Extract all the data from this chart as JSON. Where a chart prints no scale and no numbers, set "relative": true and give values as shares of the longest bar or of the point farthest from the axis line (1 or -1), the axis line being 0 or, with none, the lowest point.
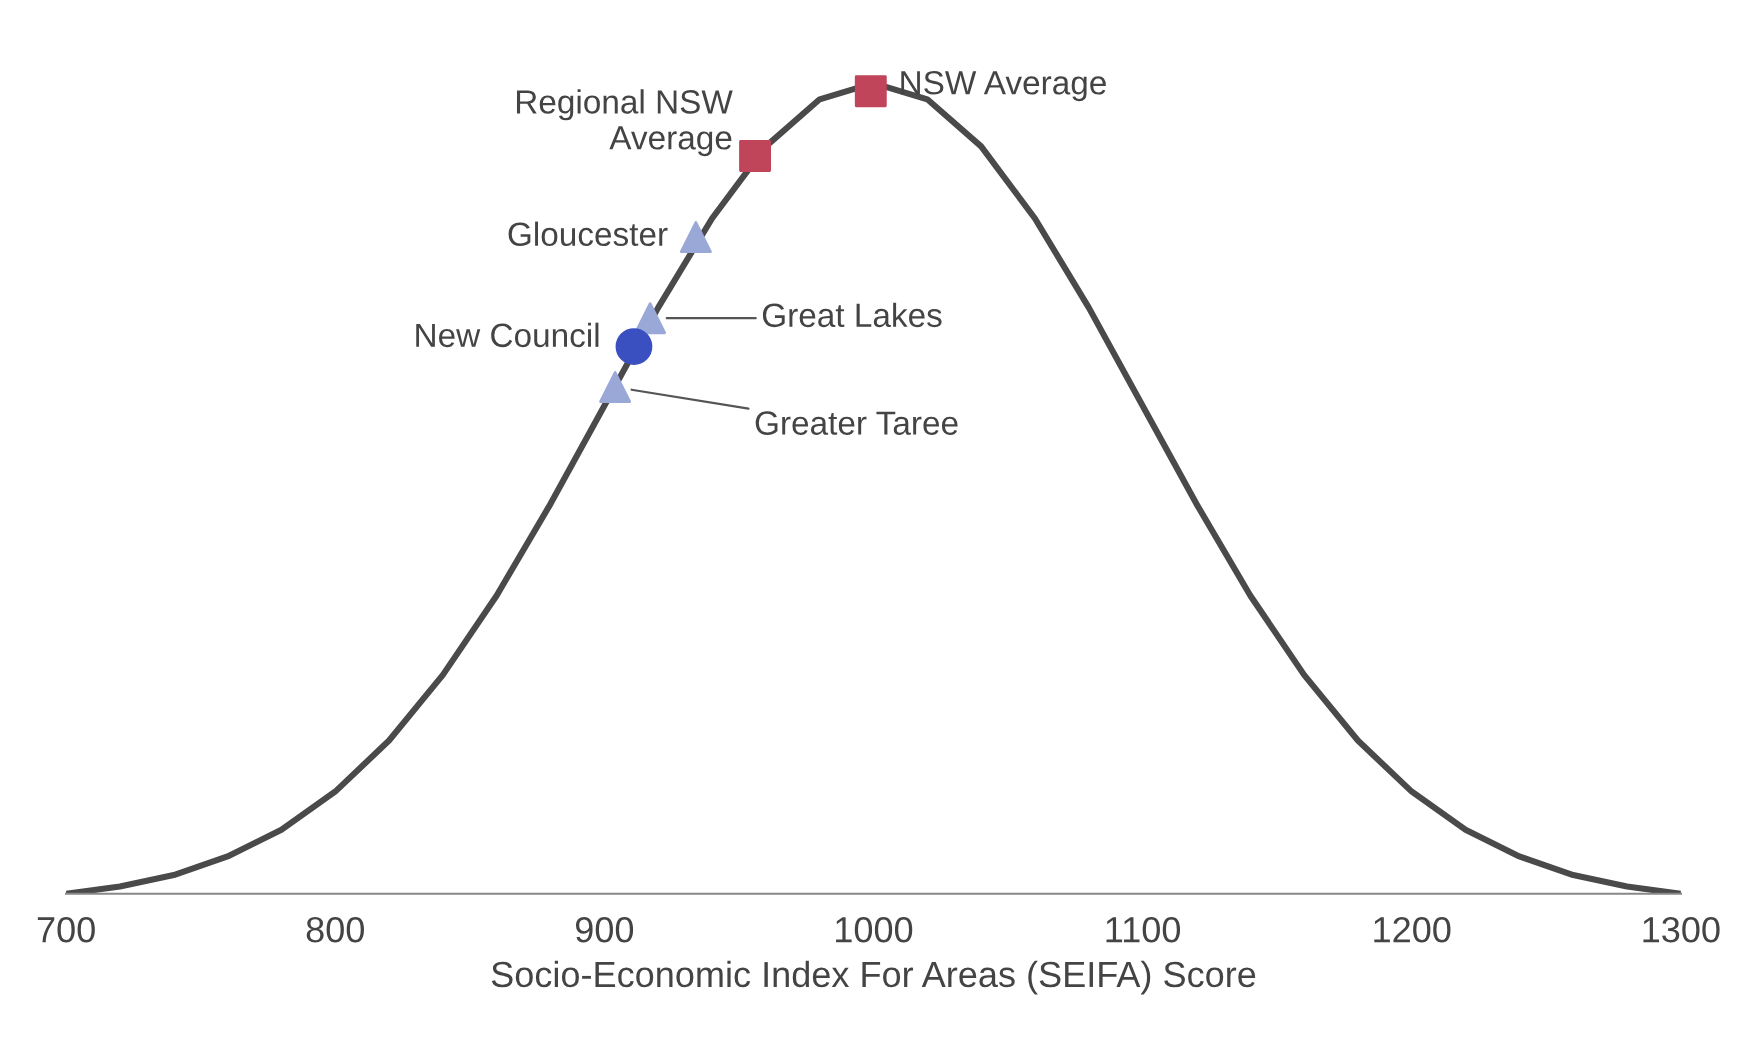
{
  "chart_data": {
    "type": "line",
    "relative": true,
    "xlabel": "Socio-Economic Index For Areas (SEIFA) Score",
    "xlim": [
      700,
      1300
    ],
    "xticks": [
      700,
      800,
      900,
      1000,
      1100,
      1200,
      1300
    ],
    "grid": false,
    "legend": false,
    "series": [
      {
        "color": "#4a4a4a",
        "marker": "none",
        "line_style": "solid",
        "x": [
          700,
          720,
          740,
          760,
          780,
          800,
          820,
          840,
          860,
          880,
          900,
          920,
          940,
          960,
          980,
          1000,
          1020,
          1040,
          1060,
          1080,
          1100,
          1120,
          1140,
          1160,
          1180,
          1200,
          1220,
          1240,
          1260,
          1280,
          1300
        ],
        "values": [
          0,
          0.009,
          0.023,
          0.046,
          0.079,
          0.126,
          0.189,
          0.27,
          0.368,
          0.481,
          0.602,
          0.723,
          0.833,
          0.922,
          0.98,
          1,
          0.98,
          0.922,
          0.833,
          0.723,
          0.602,
          0.481,
          0.368,
          0.27,
          0.189,
          0.126,
          0.079,
          0.046,
          0.023,
          0.009,
          0
        ]
      },
      {
        "type": "scatter",
        "name": "NSW Average",
        "color": "#c0455a",
        "marker": "square",
        "x": [
          999
        ],
        "values": [
          0.99
        ]
      },
      {
        "type": "scatter",
        "name": "Regional NSW\nAverage",
        "color": "#c0455a",
        "marker": "square",
        "x": [
          956
        ],
        "values": [
          0.91
        ]
      },
      {
        "type": "scatter",
        "name": "Gloucester",
        "color": "#9aa8d8",
        "marker": "triangle",
        "x": [
          934
        ],
        "values": [
          0.81
        ]
      },
      {
        "type": "scatter",
        "name": "Great Lakes",
        "color": "#9aa8d8",
        "marker": "triangle",
        "x": [
          917
        ],
        "values": [
          0.71
        ]
      },
      {
        "type": "scatter",
        "name": "New Council",
        "color": "#3a4fc0",
        "marker": "circle",
        "x": [
          911
        ],
        "values": [
          0.675
        ]
      },
      {
        "type": "scatter",
        "name": "Greater Taree",
        "color": "#9aa8d8",
        "marker": "triangle",
        "x": [
          904
        ],
        "values": [
          0.625
        ]
      }
    ]
  }
}
